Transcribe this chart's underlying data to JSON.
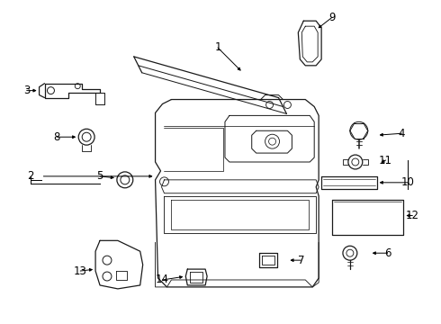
{
  "background_color": "#ffffff",
  "fig_width": 4.9,
  "fig_height": 3.6,
  "dpi": 100,
  "line_color": "#1a1a1a",
  "text_color": "#000000",
  "label_fontsize": 8.5
}
